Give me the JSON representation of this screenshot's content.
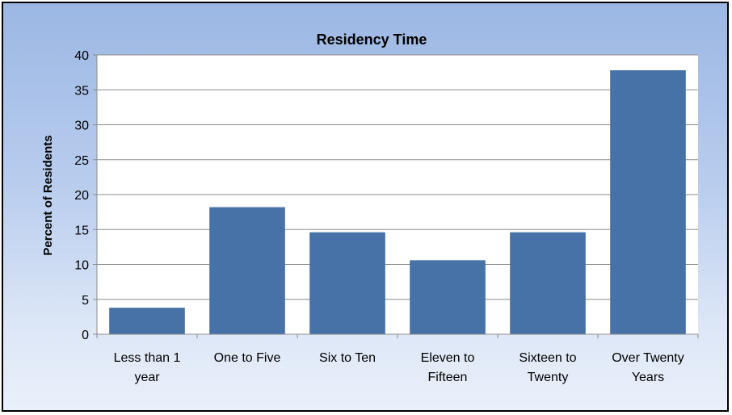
{
  "chart_data": {
    "type": "bar",
    "title": "Residency Time",
    "xlabel": "",
    "ylabel": "Percent of Residents",
    "categories": [
      [
        "Less than 1",
        "year"
      ],
      [
        "One to Five"
      ],
      [
        "Six to Ten"
      ],
      [
        "Eleven to",
        "Fifteen"
      ],
      [
        "Sixteen to",
        "Twenty"
      ],
      [
        "Over Twenty",
        "Years"
      ]
    ],
    "values": [
      3.8,
      18.2,
      14.6,
      10.6,
      14.6,
      37.8
    ],
    "ylim": [
      0,
      40
    ],
    "yticks": [
      0,
      5,
      10,
      15,
      20,
      25,
      30,
      35,
      40
    ],
    "grid": true,
    "legend": "none",
    "colors": {
      "bar": "#4672a8",
      "grid": "#8c8c8c",
      "plot_bg": "#ffffff"
    }
  }
}
